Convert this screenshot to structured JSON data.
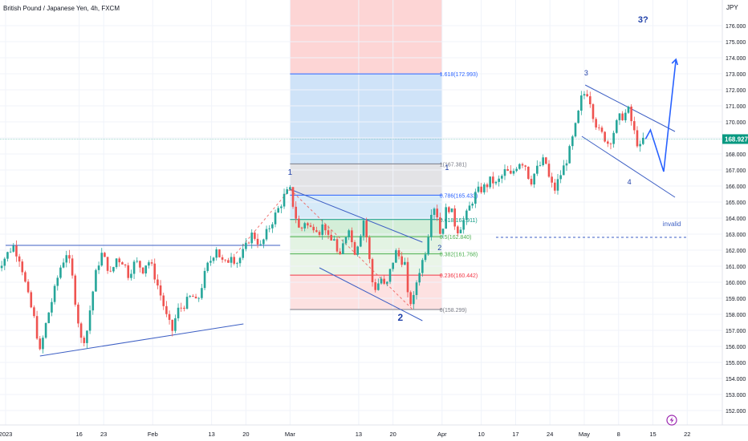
{
  "header": {
    "symbol_title": "British Pound / Japanese Yen, 4h, FXCM"
  },
  "axis": {
    "currency": "JPY"
  },
  "price": {
    "current": "168.927",
    "current_value": 168.927,
    "ticks": [
      152,
      153,
      154,
      155,
      156,
      157,
      158,
      159,
      160,
      161,
      162,
      163,
      164,
      165,
      166,
      167,
      168,
      169,
      170,
      171,
      172,
      173,
      174,
      175,
      176
    ],
    "tick_labels": [
      "152.000",
      "153.000",
      "154.000",
      "155.000",
      "156.000",
      "157.000",
      "158.000",
      "159.000",
      "160.000",
      "161.000",
      "162.000",
      "163.000",
      "164.000",
      "165.000",
      "166.000",
      "167.000",
      "168.000",
      "169.000",
      "170.000",
      "171.000",
      "172.000",
      "173.000",
      "174.000",
      "175.000",
      "176.000"
    ]
  },
  "time_axis": {
    "labels": [
      "2023",
      "16",
      "23",
      "Feb",
      "13",
      "20",
      "Mar",
      "13",
      "20",
      "Apr",
      "10",
      "17",
      "24",
      "May",
      "8",
      "15",
      "22"
    ],
    "positions": [
      0.0,
      15.0,
      20.0,
      30.0,
      42.0,
      49.0,
      58.0,
      72.0,
      79.0,
      89.0,
      97.0,
      104.0,
      111.0,
      118.0,
      125.0,
      132.0,
      139.0
    ]
  },
  "fibonacci": {
    "levels": [
      {
        "ratio": "0",
        "price": 158.299,
        "text": "0(158.299)",
        "color": "#787b86"
      },
      {
        "ratio": "0.236",
        "price": 160.442,
        "text": "0.236(160.442)",
        "color": "#f23645"
      },
      {
        "ratio": "0.382",
        "price": 161.768,
        "text": "0.382(161.768)",
        "color": "#4caf50"
      },
      {
        "ratio": "0.5",
        "price": 162.84,
        "text": "0.5(162.840)",
        "color": "#4caf50"
      },
      {
        "ratio": "0.618",
        "price": 163.911,
        "text": "0.618(163.911)",
        "color": "#089981"
      },
      {
        "ratio": "0.786",
        "price": 165.433,
        "text": "0.786(165.433)",
        "color": "#2962ff"
      },
      {
        "ratio": "1",
        "price": 167.381,
        "text": "1(167.381)",
        "color": "#787b86"
      },
      {
        "ratio": "1.618",
        "price": 172.993,
        "text": "1.618(172.993)",
        "color": "#2962ff"
      }
    ]
  },
  "annotations": {
    "wave_labels": [
      {
        "text": "1",
        "t": 58.0,
        "p": 166.7,
        "color": "#1e3fa8",
        "size": 10
      },
      {
        "text": "2",
        "t": 80.5,
        "p": 157.6,
        "color": "#1e3fa8",
        "size": 12
      },
      {
        "text": "1",
        "t": 90.0,
        "p": 167.0,
        "color": "#1e3fa8",
        "size": 9
      },
      {
        "text": "2",
        "t": 88.5,
        "p": 162.0,
        "color": "#1e3fa8",
        "size": 9
      },
      {
        "text": "3",
        "t": 118.4,
        "p": 172.9,
        "color": "#1e3fa8",
        "size": 9
      },
      {
        "text": "4",
        "t": 127.2,
        "p": 166.1,
        "color": "#1e3fa8",
        "size": 9
      },
      {
        "text": "3?",
        "t": 130.0,
        "p": 176.2,
        "color": "#1e3fa8",
        "size": 11
      }
    ],
    "invalid_label": "invalid"
  },
  "colors": {
    "up": "#26a69a",
    "down": "#ef5350",
    "trendline": "#3d5fc4",
    "fib_red_zone": "#fdd5d5",
    "fib_blue_zone": "#cfe3f8",
    "current_price_badge": "#089981"
  },
  "chart_data": {
    "type": "candlestick",
    "title": "British Pound / Japanese Yen, 4h, FXCM",
    "ylabel": "JPY",
    "ylim": [
      151.3,
      177.2
    ],
    "x_unit": "days since 2023-01-02 (x-axis shows dates)",
    "close_path": [
      [
        -2.0,
        160.8
      ],
      [
        0.0,
        161.6
      ],
      [
        1.5,
        162.3
      ],
      [
        3.0,
        161.4
      ],
      [
        4.5,
        159.2
      ],
      [
        6.0,
        157.5
      ],
      [
        7.0,
        155.6
      ],
      [
        8.5,
        157.8
      ],
      [
        10.0,
        159.5
      ],
      [
        11.0,
        160.8
      ],
      [
        12.5,
        161.9
      ],
      [
        13.5,
        160.5
      ],
      [
        14.5,
        158.2
      ],
      [
        15.5,
        156.2
      ],
      [
        16.5,
        156.8
      ],
      [
        17.5,
        158.9
      ],
      [
        18.5,
        160.7
      ],
      [
        19.5,
        161.8
      ],
      [
        20.5,
        161.2
      ],
      [
        21.5,
        160.4
      ],
      [
        22.5,
        161.5
      ],
      [
        24.0,
        161.3
      ],
      [
        25.0,
        160.5
      ],
      [
        26.5,
        161.3
      ],
      [
        28.0,
        160.8
      ],
      [
        29.0,
        161.4
      ],
      [
        30.0,
        160.8
      ],
      [
        31.0,
        159.8
      ],
      [
        32.0,
        158.8
      ],
      [
        33.0,
        157.6
      ],
      [
        34.0,
        157.0
      ],
      [
        35.0,
        158.2
      ],
      [
        36.0,
        158.5
      ],
      [
        37.0,
        158.8
      ],
      [
        38.0,
        159.2
      ],
      [
        39.0,
        158.6
      ],
      [
        40.0,
        159.8
      ],
      [
        41.0,
        160.9
      ],
      [
        42.0,
        161.5
      ],
      [
        43.0,
        162.2
      ],
      [
        44.0,
        161.3
      ],
      [
        45.0,
        161.1
      ],
      [
        46.0,
        161.8
      ],
      [
        47.0,
        161.2
      ],
      [
        48.0,
        161.6
      ],
      [
        49.0,
        162.2
      ],
      [
        50.0,
        163.0
      ],
      [
        51.0,
        162.8
      ],
      [
        52.0,
        162.2
      ],
      [
        53.0,
        162.9
      ],
      [
        54.0,
        163.6
      ],
      [
        55.0,
        164.2
      ],
      [
        56.0,
        164.8
      ],
      [
        57.0,
        165.5
      ],
      [
        58.0,
        165.7
      ],
      [
        59.0,
        164.3
      ],
      [
        60.0,
        163.1
      ],
      [
        61.0,
        163.8
      ],
      [
        62.0,
        163.3
      ],
      [
        63.0,
        163.6
      ],
      [
        64.0,
        163.2
      ],
      [
        65.0,
        163.7
      ],
      [
        66.0,
        162.4
      ],
      [
        67.0,
        162.8
      ],
      [
        68.0,
        161.2
      ],
      [
        69.0,
        162.6
      ],
      [
        70.0,
        163.5
      ],
      [
        71.0,
        161.8
      ],
      [
        72.0,
        162.6
      ],
      [
        73.0,
        163.9
      ],
      [
        74.0,
        162.1
      ],
      [
        74.5,
        160.2
      ],
      [
        75.5,
        159.6
      ],
      [
        76.5,
        160.3
      ],
      [
        77.5,
        159.5
      ],
      [
        78.5,
        160.8
      ],
      [
        79.5,
        161.9
      ],
      [
        80.5,
        161.5
      ],
      [
        81.5,
        161.1
      ],
      [
        82.0,
        159.1
      ],
      [
        83.0,
        158.6
      ],
      [
        84.0,
        160.4
      ],
      [
        85.5,
        161.8
      ],
      [
        86.5,
        163.6
      ],
      [
        87.0,
        165.1
      ],
      [
        88.0,
        164.2
      ],
      [
        88.5,
        163.0
      ],
      [
        89.5,
        163.8
      ],
      [
        90.0,
        164.9
      ],
      [
        91.0,
        164.3
      ],
      [
        92.0,
        163.2
      ],
      [
        93.0,
        163.6
      ],
      [
        94.0,
        164.2
      ],
      [
        95.0,
        165.0
      ],
      [
        96.0,
        165.6
      ],
      [
        97.0,
        165.8
      ],
      [
        98.0,
        166.0
      ],
      [
        99.0,
        166.4
      ],
      [
        100.0,
        166.1
      ],
      [
        101.0,
        166.5
      ],
      [
        102.0,
        167.0
      ],
      [
        103.0,
        166.6
      ],
      [
        104.0,
        167.2
      ],
      [
        105.0,
        167.6
      ],
      [
        106.0,
        167.3
      ],
      [
        107.0,
        166.2
      ],
      [
        108.0,
        166.9
      ],
      [
        109.0,
        167.3
      ],
      [
        110.0,
        167.7
      ],
      [
        111.0,
        166.2
      ],
      [
        112.0,
        165.8
      ],
      [
        113.0,
        166.6
      ],
      [
        114.0,
        167.3
      ],
      [
        115.0,
        168.2
      ],
      [
        116.0,
        169.4
      ],
      [
        117.0,
        170.8
      ],
      [
        117.5,
        171.6
      ],
      [
        118.5,
        171.9
      ],
      [
        119.0,
        171.6
      ],
      [
        120.0,
        170.2
      ],
      [
        121.0,
        169.4
      ],
      [
        122.0,
        169.1
      ],
      [
        123.0,
        168.6
      ],
      [
        124.0,
        169.4
      ],
      [
        125.0,
        170.2
      ],
      [
        126.0,
        170.4
      ],
      [
        127.0,
        170.7
      ],
      [
        128.0,
        169.6
      ],
      [
        128.5,
        168.9
      ],
      [
        129.5,
        168.3
      ],
      [
        130.0,
        168.9
      ],
      [
        130.5,
        168.93
      ]
    ],
    "hline_resistance": 162.3,
    "invalid_level": 162.8
  }
}
